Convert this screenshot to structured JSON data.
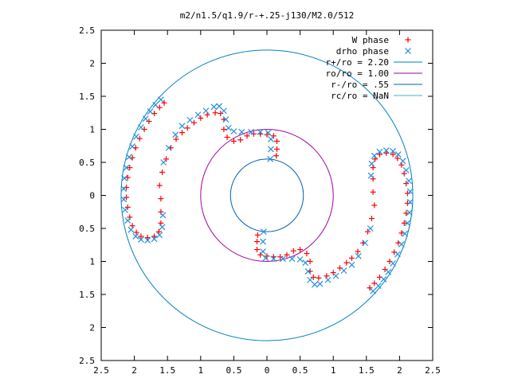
{
  "chart_data": {
    "type": "scatter",
    "title": "m2/n1.5/q1.9/r-+.25-j130/M2.0/512",
    "xlabel": "",
    "ylabel": "",
    "xlim": [
      -2.5,
      2.5
    ],
    "ylim": [
      -2.5,
      2.5
    ],
    "x_ticks": [
      {
        "value": -2.5,
        "label": "2.5"
      },
      {
        "value": -2,
        "label": "2"
      },
      {
        "value": -1.5,
        "label": "1.5"
      },
      {
        "value": -1,
        "label": "1"
      },
      {
        "value": -0.5,
        "label": "0.5"
      },
      {
        "value": 0,
        "label": "0"
      },
      {
        "value": 0.5,
        "label": "0.5"
      },
      {
        "value": 1,
        "label": "1"
      },
      {
        "value": 1.5,
        "label": "1.5"
      },
      {
        "value": 2,
        "label": "2"
      },
      {
        "value": 2.5,
        "label": "2.5"
      }
    ],
    "y_ticks": [
      {
        "value": 2.5,
        "label": "2.5"
      },
      {
        "value": 2,
        "label": "2"
      },
      {
        "value": 1.5,
        "label": "1.5"
      },
      {
        "value": 1,
        "label": "1"
      },
      {
        "value": 0.5,
        "label": "0.5"
      },
      {
        "value": 0,
        "label": "0"
      },
      {
        "value": -0.5,
        "label": "0.5"
      },
      {
        "value": -1,
        "label": "1"
      },
      {
        "value": -1.5,
        "label": "1.5"
      },
      {
        "value": -2,
        "label": "2"
      },
      {
        "value": -2.5,
        "label": "2.5"
      }
    ],
    "grid": false,
    "legend_position": "top-right",
    "circles": [
      {
        "name": "r+/ro = 2.20",
        "radius": 2.2,
        "color": "#0080c0"
      },
      {
        "name": "ro/ro = 1.00",
        "radius": 1.0,
        "color": "#a000a0"
      },
      {
        "name": "r-/ro = .55",
        "radius": 0.55,
        "color": "#0060b0"
      },
      {
        "name": "rc/ro = NaN",
        "radius": null,
        "color": "#40b0d0"
      }
    ],
    "series": [
      {
        "name": "W phase",
        "marker": "plus",
        "color": "#ff0000",
        "points": [
          [
            -1.55,
            1.4
          ],
          [
            -1.62,
            1.33
          ],
          [
            -1.7,
            1.24
          ],
          [
            -1.78,
            1.12
          ],
          [
            -1.85,
            1.0
          ],
          [
            -1.92,
            0.86
          ],
          [
            -1.98,
            0.72
          ],
          [
            -2.03,
            0.57
          ],
          [
            -2.07,
            0.42
          ],
          [
            -2.1,
            0.27
          ],
          [
            -2.12,
            0.12
          ],
          [
            -2.12,
            -0.03
          ],
          [
            -2.1,
            -0.18
          ],
          [
            -2.07,
            -0.33
          ],
          [
            -2.03,
            -0.46
          ],
          [
            -1.97,
            -0.56
          ],
          [
            -1.9,
            -0.62
          ],
          [
            -1.8,
            -0.64
          ],
          [
            -1.7,
            -0.62
          ],
          [
            -1.63,
            -0.55
          ],
          [
            -1.6,
            -0.42
          ],
          [
            -1.6,
            -0.25
          ],
          [
            -1.6,
            -0.05
          ],
          [
            -1.62,
            0.15
          ],
          [
            -1.58,
            0.35
          ],
          [
            -1.52,
            0.55
          ],
          [
            -1.45,
            0.72
          ],
          [
            -1.37,
            0.85
          ],
          [
            -1.28,
            0.95
          ],
          [
            -1.2,
            1.02
          ],
          [
            -1.1,
            1.1
          ],
          [
            -1.0,
            1.17
          ],
          [
            -0.9,
            1.22
          ],
          [
            -0.78,
            1.25
          ],
          [
            -0.7,
            1.24
          ],
          [
            -0.65,
            1.15
          ],
          [
            -0.65,
            1.0
          ],
          [
            -0.6,
            0.88
          ],
          [
            -0.5,
            0.82
          ],
          [
            -0.4,
            0.84
          ],
          [
            -0.3,
            0.9
          ],
          [
            -0.2,
            0.93
          ],
          [
            -0.1,
            0.93
          ],
          [
            0.0,
            0.92
          ],
          [
            0.1,
            0.9
          ],
          [
            0.15,
            0.82
          ],
          [
            0.15,
            0.7
          ],
          [
            0.14,
            0.6
          ],
          [
            1.55,
            -1.4
          ],
          [
            1.62,
            -1.33
          ],
          [
            1.7,
            -1.24
          ],
          [
            1.78,
            -1.12
          ],
          [
            1.85,
            -1.0
          ],
          [
            1.92,
            -0.86
          ],
          [
            1.98,
            -0.72
          ],
          [
            2.03,
            -0.57
          ],
          [
            2.07,
            -0.42
          ],
          [
            2.1,
            -0.27
          ],
          [
            2.12,
            -0.12
          ],
          [
            2.12,
            0.03
          ],
          [
            2.1,
            0.18
          ],
          [
            2.07,
            0.33
          ],
          [
            2.03,
            0.46
          ],
          [
            1.97,
            0.56
          ],
          [
            1.9,
            0.62
          ],
          [
            1.8,
            0.64
          ],
          [
            1.7,
            0.62
          ],
          [
            1.63,
            0.55
          ],
          [
            1.6,
            0.42
          ],
          [
            1.6,
            0.25
          ],
          [
            1.6,
            0.05
          ],
          [
            1.62,
            -0.15
          ],
          [
            1.58,
            -0.35
          ],
          [
            1.52,
            -0.55
          ],
          [
            1.45,
            -0.72
          ],
          [
            1.37,
            -0.85
          ],
          [
            1.28,
            -0.95
          ],
          [
            1.2,
            -1.02
          ],
          [
            1.1,
            -1.1
          ],
          [
            1.0,
            -1.17
          ],
          [
            0.9,
            -1.22
          ],
          [
            0.78,
            -1.25
          ],
          [
            0.7,
            -1.24
          ],
          [
            0.65,
            -1.15
          ],
          [
            0.65,
            -1.0
          ],
          [
            0.6,
            -0.88
          ],
          [
            0.5,
            -0.82
          ],
          [
            0.4,
            -0.84
          ],
          [
            0.3,
            -0.9
          ],
          [
            0.2,
            -0.93
          ],
          [
            0.1,
            -0.93
          ],
          [
            0.0,
            -0.92
          ],
          [
            -0.1,
            -0.9
          ],
          [
            -0.15,
            -0.82
          ],
          [
            -0.15,
            -0.7
          ],
          [
            -0.14,
            -0.6
          ]
        ]
      },
      {
        "name": "drho phase",
        "marker": "cross",
        "color": "#1f8fe0",
        "points": [
          [
            -1.6,
            1.45
          ],
          [
            -1.68,
            1.37
          ],
          [
            -1.76,
            1.27
          ],
          [
            -1.83,
            1.16
          ],
          [
            -1.9,
            1.03
          ],
          [
            -1.97,
            0.89
          ],
          [
            -2.03,
            0.74
          ],
          [
            -2.08,
            0.58
          ],
          [
            -2.12,
            0.42
          ],
          [
            -2.15,
            0.26
          ],
          [
            -2.16,
            0.1
          ],
          [
            -2.16,
            -0.06
          ],
          [
            -2.14,
            -0.22
          ],
          [
            -2.1,
            -0.38
          ],
          [
            -2.05,
            -0.52
          ],
          [
            -1.98,
            -0.62
          ],
          [
            -1.9,
            -0.67
          ],
          [
            -1.8,
            -0.68
          ],
          [
            -1.7,
            -0.66
          ],
          [
            -1.62,
            -0.6
          ],
          [
            -1.58,
            -0.48
          ],
          [
            -1.57,
            -0.3
          ],
          [
            -1.56,
            0.5
          ],
          [
            -1.48,
            0.72
          ],
          [
            -1.38,
            0.92
          ],
          [
            -1.28,
            1.05
          ],
          [
            -1.16,
            1.14
          ],
          [
            -1.04,
            1.22
          ],
          [
            -0.92,
            1.28
          ],
          [
            -0.8,
            1.34
          ],
          [
            -0.72,
            1.35
          ],
          [
            -0.65,
            1.28
          ],
          [
            -0.62,
            1.15
          ],
          [
            -0.58,
            1.02
          ],
          [
            -0.5,
            0.97
          ],
          [
            -0.38,
            0.96
          ],
          [
            -0.24,
            0.96
          ],
          [
            -0.1,
            0.96
          ],
          [
            0.02,
            0.95
          ],
          [
            0.06,
            0.85
          ],
          [
            0.06,
            0.7
          ],
          [
            0.05,
            0.55
          ],
          [
            1.6,
            -1.45
          ],
          [
            1.68,
            -1.37
          ],
          [
            1.76,
            -1.27
          ],
          [
            1.83,
            -1.16
          ],
          [
            1.9,
            -1.03
          ],
          [
            1.97,
            -0.89
          ],
          [
            2.03,
            -0.74
          ],
          [
            2.08,
            -0.58
          ],
          [
            2.12,
            -0.42
          ],
          [
            2.15,
            -0.26
          ],
          [
            2.16,
            -0.1
          ],
          [
            2.16,
            0.06
          ],
          [
            2.14,
            0.22
          ],
          [
            2.1,
            0.38
          ],
          [
            2.05,
            0.52
          ],
          [
            1.98,
            0.62
          ],
          [
            1.9,
            0.67
          ],
          [
            1.8,
            0.68
          ],
          [
            1.7,
            0.66
          ],
          [
            1.62,
            0.6
          ],
          [
            1.58,
            0.48
          ],
          [
            1.57,
            0.3
          ],
          [
            1.56,
            -0.5
          ],
          [
            1.48,
            -0.72
          ],
          [
            1.38,
            -0.92
          ],
          [
            1.28,
            -1.05
          ],
          [
            1.16,
            -1.14
          ],
          [
            1.04,
            -1.22
          ],
          [
            0.92,
            -1.28
          ],
          [
            0.8,
            -1.34
          ],
          [
            0.72,
            -1.35
          ],
          [
            0.65,
            -1.28
          ],
          [
            0.62,
            -1.15
          ],
          [
            0.58,
            -1.02
          ],
          [
            0.5,
            -0.97
          ],
          [
            0.38,
            -0.96
          ],
          [
            0.24,
            -0.96
          ],
          [
            0.1,
            -0.96
          ],
          [
            -0.02,
            -0.95
          ],
          [
            -0.06,
            -0.85
          ],
          [
            -0.06,
            -0.7
          ],
          [
            -0.05,
            -0.55
          ]
        ]
      }
    ]
  }
}
